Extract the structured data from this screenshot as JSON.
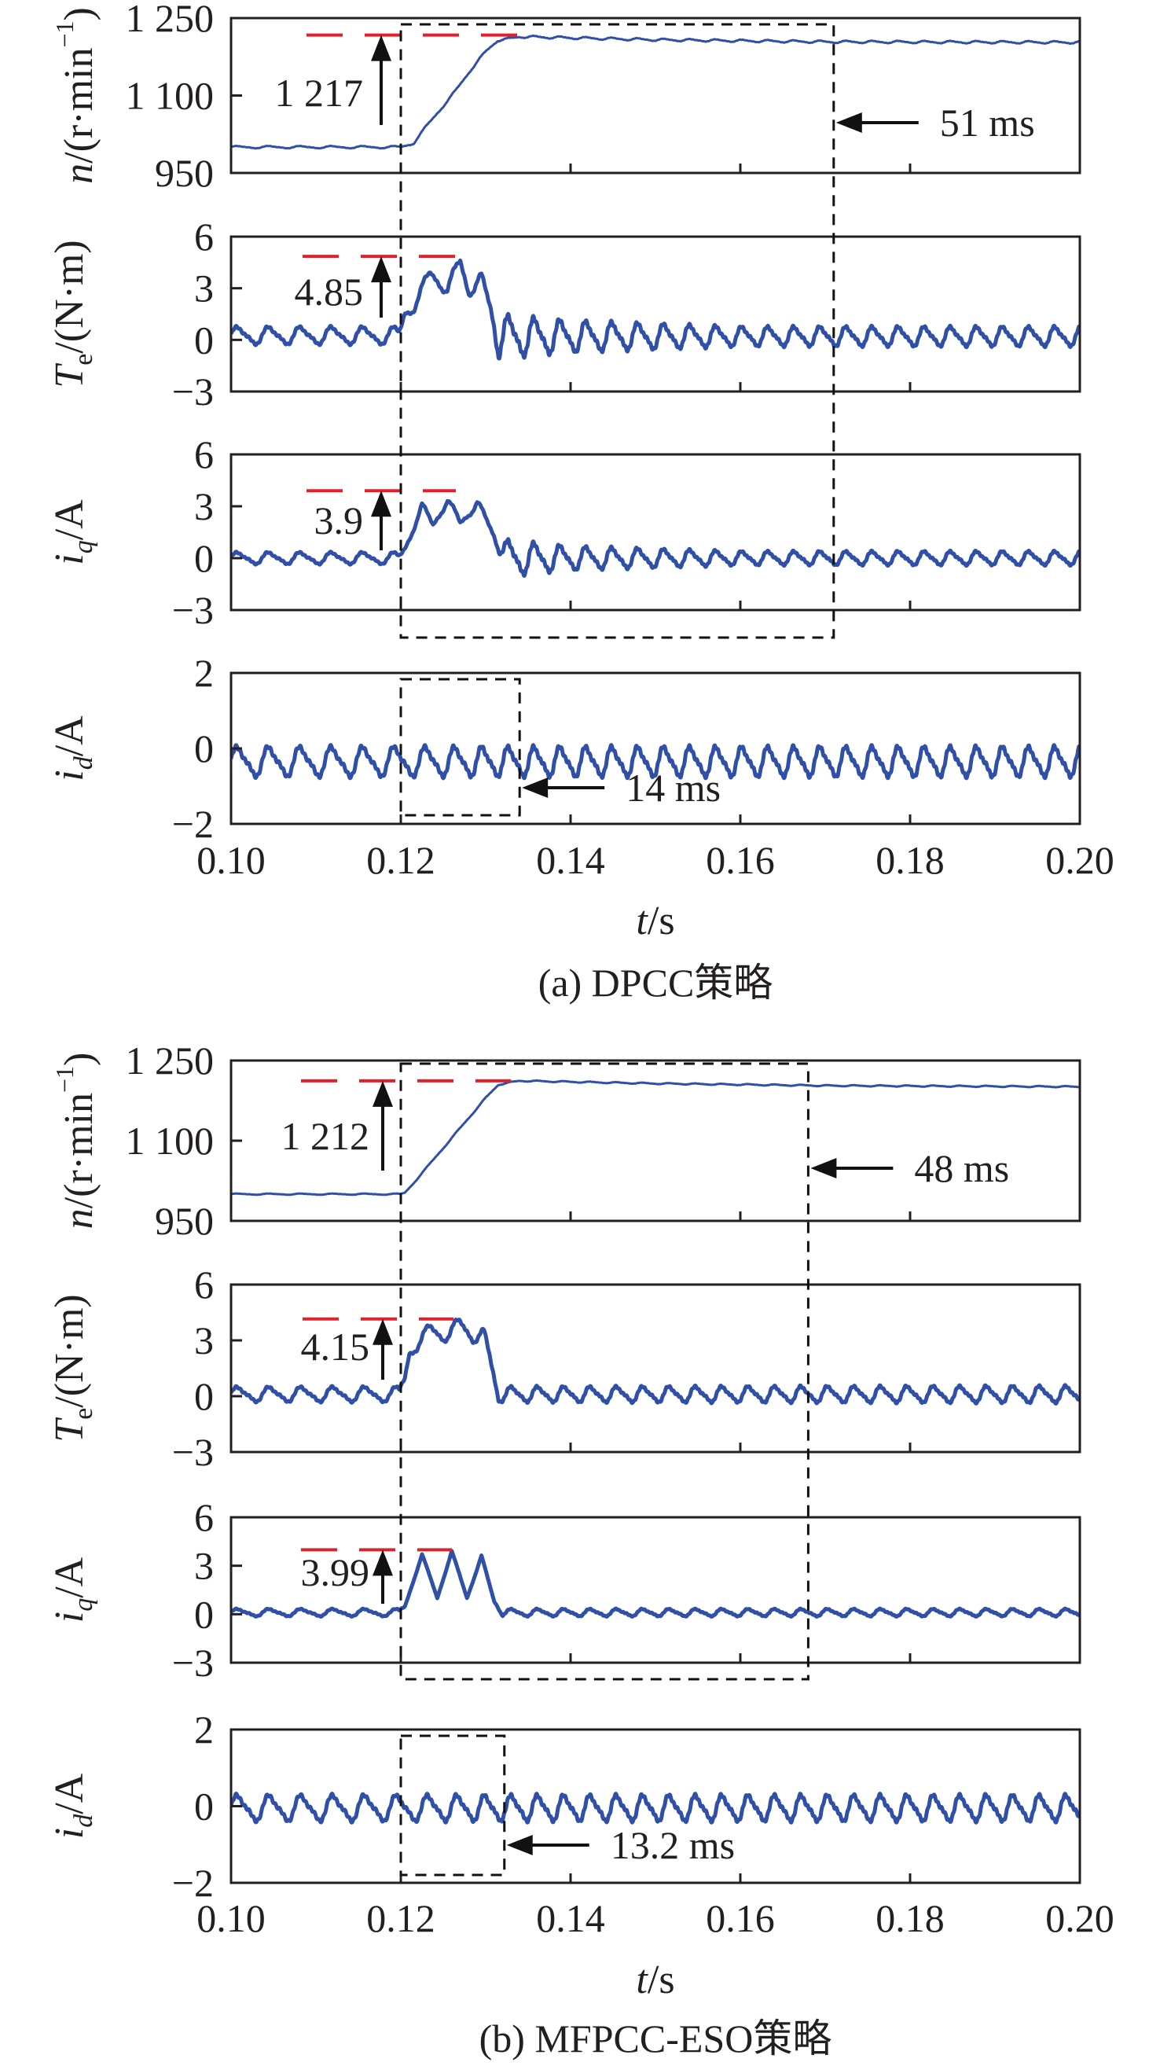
{
  "colors": {
    "trace": "#3050a8",
    "reference": "#e0202a",
    "axes": "#231f20"
  },
  "chart_data": [
    {
      "type": "line",
      "figure": "a",
      "caption": "(a) DPCC策略",
      "xlabel": {
        "var": "t",
        "unit": "/s"
      },
      "xlim": [
        0.1,
        0.2
      ],
      "xticks": [
        0.1,
        0.12,
        0.14,
        0.16,
        0.18,
        0.2
      ],
      "xticklabels": [
        "0.10",
        "0.12",
        "0.14",
        "0.16",
        "0.18",
        "0.20"
      ],
      "ripple_period_ms_at_1000rpm": 3.7,
      "panels": [
        {
          "name": "speed",
          "ylabel": {
            "var": "n",
            "sub": "",
            "unit": "/(r·min",
            "sup": "−1",
            "close": ")"
          },
          "ylim": [
            950,
            1250
          ],
          "yticks": [
            950,
            1100,
            1250
          ],
          "yticklabels": [
            "950",
            "1 100",
            "1 250"
          ],
          "points": [
            [
              0.1,
              1000
            ],
            [
              0.12,
              1000
            ],
            [
              0.1215,
              1008
            ],
            [
              0.123,
              1040
            ],
            [
              0.1248,
              1076
            ],
            [
              0.1265,
              1110
            ],
            [
              0.1282,
              1149
            ],
            [
              0.13,
              1185
            ],
            [
              0.1314,
              1207
            ],
            [
              0.1325,
              1209
            ],
            [
              0.134,
              1214
            ],
            [
              0.15,
              1208
            ],
            [
              0.17,
              1204
            ],
            [
              0.2,
              1203
            ]
          ],
          "ripple_amp": [
            [
              0.1,
              2
            ],
            [
              0.2,
              2
            ]
          ],
          "reference": {
            "value": 1217,
            "label": "1 217"
          }
        },
        {
          "name": "torque",
          "ylabel": {
            "var": "T",
            "sub": "e",
            "unit": "/(N·m)",
            "sup": "",
            "close": ""
          },
          "ylim": [
            -3,
            6
          ],
          "yticks": [
            -3,
            0,
            3,
            6
          ],
          "yticklabels": [
            "−3",
            "0",
            "3",
            "6"
          ],
          "points": [
            [
              0.1,
              0.25
            ],
            [
              0.1198,
              0.25
            ],
            [
              0.1205,
              1.6
            ],
            [
              0.1215,
              2.0
            ],
            [
              0.1235,
              3.8
            ],
            [
              0.1255,
              3.0
            ],
            [
              0.127,
              4.5
            ],
            [
              0.128,
              2.9
            ],
            [
              0.1295,
              3.5
            ],
            [
              0.1305,
              2.0
            ],
            [
              0.1315,
              0.2
            ],
            [
              0.2,
              0.2
            ]
          ],
          "ripple_amp": [
            [
              0.1,
              0.45
            ],
            [
              0.1198,
              0.45
            ],
            [
              0.1205,
              0.35
            ],
            [
              0.1305,
              0.35
            ],
            [
              0.1315,
              1.1
            ],
            [
              0.14,
              0.8
            ],
            [
              0.16,
              0.5
            ],
            [
              0.2,
              0.5
            ]
          ],
          "reference": {
            "value": 4.85,
            "label": "4.85"
          }
        },
        {
          "name": "iq",
          "ylabel": {
            "var": "i",
            "sub": "q",
            "unit": "/A",
            "sup": "",
            "close": ""
          },
          "ylim": [
            -3,
            6
          ],
          "yticks": [
            -3,
            0,
            3,
            6
          ],
          "yticklabels": [
            "−3",
            "0",
            "3",
            "6"
          ],
          "points": [
            [
              0.1,
              0
            ],
            [
              0.1198,
              0
            ],
            [
              0.1205,
              0.6
            ],
            [
              0.1215,
              1.8
            ],
            [
              0.1225,
              3.0
            ],
            [
              0.1238,
              1.9
            ],
            [
              0.1255,
              3.4
            ],
            [
              0.127,
              2.0
            ],
            [
              0.129,
              3.2
            ],
            [
              0.1305,
              1.8
            ],
            [
              0.1325,
              0
            ],
            [
              0.2,
              0
            ]
          ],
          "ripple_amp": [
            [
              0.1,
              0.3
            ],
            [
              0.1198,
              0.3
            ],
            [
              0.1205,
              0.2
            ],
            [
              0.131,
              0.2
            ],
            [
              0.1325,
              0.9
            ],
            [
              0.14,
              0.6
            ],
            [
              0.16,
              0.35
            ],
            [
              0.2,
              0.35
            ]
          ],
          "reference": {
            "value": 3.9,
            "label": "3.9"
          }
        },
        {
          "name": "id",
          "ylabel": {
            "var": "i",
            "sub": "d",
            "unit": "/A",
            "sup": "",
            "close": ""
          },
          "ylim": [
            -2,
            2
          ],
          "yticks": [
            -2,
            0,
            2
          ],
          "yticklabels": [
            "−2",
            "0",
            "2"
          ],
          "points": [
            [
              0.1,
              -0.35
            ],
            [
              0.2,
              -0.35
            ]
          ],
          "ripple_amp": [
            [
              0.1,
              0.35
            ],
            [
              0.2,
              0.35
            ]
          ],
          "reference": null
        }
      ],
      "intervals": [
        {
          "t_start": 0.12,
          "t_end": 0.171,
          "panels": "speed-torque-iq",
          "label": "51 ms"
        },
        {
          "t_start": 0.12,
          "t_end": 0.134,
          "panels": "id",
          "label": "14 ms"
        }
      ]
    },
    {
      "type": "line",
      "figure": "b",
      "caption": "(b) MFPCC-ESO策略",
      "xlabel": {
        "var": "t",
        "unit": "/s"
      },
      "xlim": [
        0.1,
        0.2
      ],
      "xticks": [
        0.1,
        0.12,
        0.14,
        0.16,
        0.18,
        0.2
      ],
      "xticklabels": [
        "0.10",
        "0.12",
        "0.14",
        "0.16",
        "0.18",
        "0.20"
      ],
      "ripple_period_ms_at_1000rpm": 3.75,
      "panels": [
        {
          "name": "speed",
          "ylabel": {
            "var": "n",
            "sub": "",
            "unit": "/(r·min",
            "sup": "−1",
            "close": ")"
          },
          "ylim": [
            950,
            1250
          ],
          "yticks": [
            950,
            1100,
            1250
          ],
          "yticklabels": [
            "950",
            "1 100",
            "1 250"
          ],
          "points": [
            [
              0.1,
              1000
            ],
            [
              0.12,
              1000
            ],
            [
              0.1205,
              1003
            ],
            [
              0.122,
              1030
            ],
            [
              0.13,
              1180
            ],
            [
              0.1315,
              1205
            ],
            [
              0.134,
              1212
            ],
            [
              0.15,
              1207
            ],
            [
              0.17,
              1203
            ],
            [
              0.2,
              1201
            ]
          ],
          "ripple_amp": [
            [
              0.1,
              1
            ],
            [
              0.2,
              1
            ]
          ],
          "reference": {
            "value": 1212,
            "label": "1 212"
          }
        },
        {
          "name": "torque",
          "ylabel": {
            "var": "T",
            "sub": "e",
            "unit": "/(N·m)",
            "sup": "",
            "close": ""
          },
          "ylim": [
            -3,
            6
          ],
          "yticks": [
            -3,
            0,
            3,
            6
          ],
          "yticklabels": [
            "−3",
            "0",
            "3",
            "6"
          ],
          "points": [
            [
              0.1,
              0.1
            ],
            [
              0.1198,
              0.1
            ],
            [
              0.1205,
              1.0
            ],
            [
              0.121,
              2.4
            ],
            [
              0.1215,
              2.7
            ],
            [
              0.1235,
              3.5
            ],
            [
              0.125,
              3.3
            ],
            [
              0.127,
              3.8
            ],
            [
              0.1285,
              3.3
            ],
            [
              0.1298,
              3.2
            ],
            [
              0.1305,
              2.0
            ],
            [
              0.1315,
              0.1
            ],
            [
              0.2,
              0.1
            ]
          ],
          "ripple_amp": [
            [
              0.1,
              0.35
            ],
            [
              0.2,
              0.4
            ]
          ],
          "reference": {
            "value": 4.15,
            "label": "4.15"
          }
        },
        {
          "name": "iq",
          "ylabel": {
            "var": "i",
            "sub": "q",
            "unit": "/A",
            "sup": "",
            "close": ""
          },
          "ylim": [
            -3,
            6
          ],
          "yticks": [
            -3,
            0,
            3,
            6
          ],
          "yticklabels": [
            "−3",
            "0",
            "3",
            "6"
          ],
          "points": [
            [
              0.1,
              0.1
            ],
            [
              0.1198,
              0.1
            ],
            [
              0.1205,
              0.5
            ],
            [
              0.1225,
              3.7
            ],
            [
              0.1243,
              1.0
            ],
            [
              0.126,
              3.9
            ],
            [
              0.1278,
              1.0
            ],
            [
              0.1295,
              3.6
            ],
            [
              0.131,
              0.8
            ],
            [
              0.132,
              0.1
            ],
            [
              0.2,
              0.1
            ]
          ],
          "ripple_amp": [
            [
              0.1,
              0.2
            ],
            [
              0.12,
              0.2
            ],
            [
              0.121,
              0.05
            ],
            [
              0.131,
              0.05
            ],
            [
              0.132,
              0.2
            ],
            [
              0.2,
              0.2
            ]
          ],
          "reference": {
            "value": 3.99,
            "label": "3.99"
          }
        },
        {
          "name": "id",
          "ylabel": {
            "var": "i",
            "sub": "d",
            "unit": "/A",
            "sup": "",
            "close": ""
          },
          "ylim": [
            -2,
            2
          ],
          "yticks": [
            -2,
            0,
            2
          ],
          "yticklabels": [
            "−2",
            "0",
            "2"
          ],
          "points": [
            [
              0.1,
              -0.05
            ],
            [
              0.2,
              -0.05
            ]
          ],
          "ripple_amp": [
            [
              0.1,
              0.3
            ],
            [
              0.2,
              0.3
            ]
          ],
          "reference": null
        }
      ],
      "intervals": [
        {
          "t_start": 0.12,
          "t_end": 0.168,
          "panels": "speed-torque-iq",
          "label": "48 ms"
        },
        {
          "t_start": 0.12,
          "t_end": 0.1322,
          "panels": "id",
          "label": "13.2 ms"
        }
      ]
    }
  ]
}
